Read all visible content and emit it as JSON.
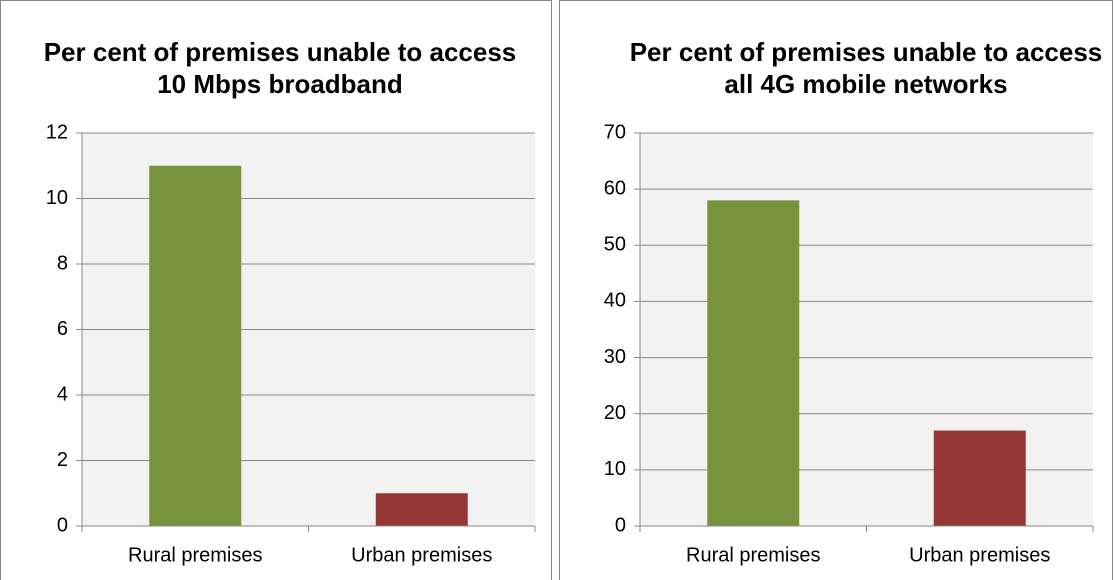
{
  "chart_data": [
    {
      "type": "bar",
      "title": "Per cent of premises unable to access 10 Mbps broadband",
      "categories": [
        "Rural premises",
        "Urban premises"
      ],
      "values": [
        11,
        1
      ],
      "colors": [
        "#77933c",
        "#953735"
      ],
      "ylim": [
        0,
        12
      ],
      "yticks": [
        0,
        2,
        4,
        6,
        8,
        10,
        12
      ],
      "grid": true
    },
    {
      "type": "bar",
      "title": "Per cent of premises unable to access all 4G mobile networks",
      "categories": [
        "Rural premises",
        "Urban premises"
      ],
      "values": [
        58,
        17
      ],
      "colors": [
        "#77933c",
        "#953735"
      ],
      "ylim": [
        0,
        70
      ],
      "yticks": [
        0,
        10,
        20,
        30,
        40,
        50,
        60,
        70
      ],
      "grid": true
    }
  ]
}
